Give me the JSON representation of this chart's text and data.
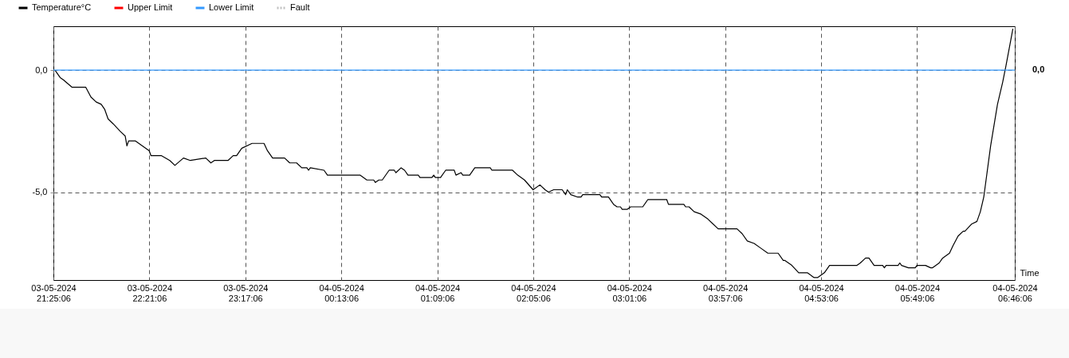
{
  "chart_data": {
    "type": "line",
    "xlabel": "Time",
    "legend": "top left",
    "grid": true,
    "line_style": "solid",
    "marker": "none",
    "xlim": [
      "2024-05-03T21:25:06",
      "2024-05-04T06:46:06"
    ],
    "xticks": [
      {
        "value": "2024-05-03T21:25:06",
        "label": "03-05-2024\n21:25:06"
      },
      {
        "value": "2024-05-03T22:21:06",
        "label": "03-05-2024\n22:21:06"
      },
      {
        "value": "2024-05-03T23:17:06",
        "label": "03-05-2024\n23:17:06"
      },
      {
        "value": "2024-05-04T00:13:06",
        "label": "04-05-2024\n00:13:06"
      },
      {
        "value": "2024-05-04T01:09:06",
        "label": "04-05-2024\n01:09:06"
      },
      {
        "value": "2024-05-04T02:05:06",
        "label": "04-05-2024\n02:05:06"
      },
      {
        "value": "2024-05-04T03:01:06",
        "label": "04-05-2024\n03:01:06"
      },
      {
        "value": "2024-05-04T03:57:06",
        "label": "04-05-2024\n03:57:06"
      },
      {
        "value": "2024-05-04T04:53:06",
        "label": "04-05-2024\n04:53:06"
      },
      {
        "value": "2024-05-04T05:49:06",
        "label": "04-05-2024\n05:49:06"
      },
      {
        "value": "2024-05-04T06:46:06",
        "label": "04-05-2024\n06:46:06"
      }
    ],
    "ylim": [
      -8.6,
      1.8
    ],
    "yticks": [
      {
        "value": 0,
        "label": "0,0"
      },
      {
        "value": -5,
        "label": "-5,0"
      }
    ],
    "annotations": [
      "0,0"
    ],
    "series": [
      {
        "name": "Temperature°C",
        "color": "#000000",
        "x": [
          "2024-05-03T21:26",
          "2024-05-03T21:29",
          "2024-05-03T21:31",
          "2024-05-03T21:36",
          "2024-05-03T21:44",
          "2024-05-03T21:47",
          "2024-05-03T21:50",
          "2024-05-03T21:53",
          "2024-05-03T21:55",
          "2024-05-03T21:57",
          "2024-05-03T22:00",
          "2024-05-03T22:04",
          "2024-05-03T22:07",
          "2024-05-03T22:08",
          "2024-05-03T22:09",
          "2024-05-03T22:13",
          "2024-05-03T22:21",
          "2024-05-03T22:22",
          "2024-05-03T22:28",
          "2024-05-03T22:33",
          "2024-05-03T22:36",
          "2024-05-03T22:41",
          "2024-05-03T22:45",
          "2024-05-03T22:54",
          "2024-05-03T22:57",
          "2024-05-03T22:59",
          "2024-05-03T23:07",
          "2024-05-03T23:10",
          "2024-05-03T23:12",
          "2024-05-03T23:15",
          "2024-05-03T23:21",
          "2024-05-03T23:28",
          "2024-05-03T23:30",
          "2024-05-03T23:33",
          "2024-05-03T23:40",
          "2024-05-03T23:43",
          "2024-05-03T23:47",
          "2024-05-03T23:50",
          "2024-05-03T23:53",
          "2024-05-03T23:54",
          "2024-05-03T23:55",
          "2024-05-04T00:03",
          "2024-05-04T00:05",
          "2024-05-04T00:24",
          "2024-05-04T00:28",
          "2024-05-04T00:32",
          "2024-05-04T00:33",
          "2024-05-04T00:35",
          "2024-05-04T00:37",
          "2024-05-04T00:41",
          "2024-05-04T00:44",
          "2024-05-04T00:45",
          "2024-05-04T00:48",
          "2024-05-04T00:50",
          "2024-05-04T00:52",
          "2024-05-04T00:58",
          "2024-05-04T00:59",
          "2024-05-04T01:06",
          "2024-05-04T01:07",
          "2024-05-04T01:08",
          "2024-05-04T01:11",
          "2024-05-04T01:14",
          "2024-05-04T01:19",
          "2024-05-04T01:20",
          "2024-05-04T01:23",
          "2024-05-04T01:24",
          "2024-05-04T01:28",
          "2024-05-04T01:31",
          "2024-05-04T01:40",
          "2024-05-04T01:41",
          "2024-05-04T01:53",
          "2024-05-04T01:56",
          "2024-05-04T02:00",
          "2024-05-04T02:05",
          "2024-05-04T02:09",
          "2024-05-04T02:12",
          "2024-05-04T02:14",
          "2024-05-04T02:17",
          "2024-05-04T02:22",
          "2024-05-04T02:24",
          "2024-05-04T02:25",
          "2024-05-04T02:27",
          "2024-05-04T02:31",
          "2024-05-04T02:33",
          "2024-05-04T02:34",
          "2024-05-04T02:44",
          "2024-05-04T02:45",
          "2024-05-04T02:49",
          "2024-05-04T02:52",
          "2024-05-04T02:54",
          "2024-05-04T02:56",
          "2024-05-04T02:57",
          "2024-05-04T03:00",
          "2024-05-04T03:02",
          "2024-05-04T03:09",
          "2024-05-04T03:12",
          "2024-05-04T03:23",
          "2024-05-04T03:24",
          "2024-05-04T03:33",
          "2024-05-04T03:34",
          "2024-05-04T03:36",
          "2024-05-04T03:39",
          "2024-05-04T03:43",
          "2024-05-04T03:47",
          "2024-05-04T03:50",
          "2024-05-04T03:53",
          "2024-05-04T04:04",
          "2024-05-04T04:07",
          "2024-05-04T04:10",
          "2024-05-04T04:14",
          "2024-05-04T04:18",
          "2024-05-04T04:22",
          "2024-05-04T04:28",
          "2024-05-04T04:31",
          "2024-05-04T04:32",
          "2024-05-04T04:36",
          "2024-05-04T04:40",
          "2024-05-04T04:45",
          "2024-05-04T04:49",
          "2024-05-04T04:51",
          "2024-05-04T04:55",
          "2024-05-04T04:58",
          "2024-05-04T05:14",
          "2024-05-04T05:16",
          "2024-05-04T05:19",
          "2024-05-04T05:21",
          "2024-05-04T05:24",
          "2024-05-04T05:29",
          "2024-05-04T05:30",
          "2024-05-04T05:31",
          "2024-05-04T05:38",
          "2024-05-04T05:39",
          "2024-05-04T05:40",
          "2024-05-04T05:44",
          "2024-05-04T05:48",
          "2024-05-04T05:49",
          "2024-05-04T05:54",
          "2024-05-04T05:57",
          "2024-05-04T05:58",
          "2024-05-04T06:02",
          "2024-05-04T06:04",
          "2024-05-04T06:08",
          "2024-05-04T06:10",
          "2024-05-04T06:13",
          "2024-05-04T06:16",
          "2024-05-04T06:17",
          "2024-05-04T06:21",
          "2024-05-04T06:24",
          "2024-05-04T06:26",
          "2024-05-04T06:28",
          "2024-05-04T06:32",
          "2024-05-04T06:36",
          "2024-05-04T06:39",
          "2024-05-04T06:41",
          "2024-05-04T06:45"
        ],
        "values": [
          0,
          -0.3,
          -0.4,
          -0.7,
          -0.7,
          -1.1,
          -1.3,
          -1.4,
          -1.6,
          -2.0,
          -2.2,
          -2.5,
          -2.7,
          -3.1,
          -2.9,
          -2.9,
          -3.3,
          -3.5,
          -3.5,
          -3.7,
          -3.9,
          -3.6,
          -3.7,
          -3.6,
          -3.8,
          -3.7,
          -3.7,
          -3.5,
          -3.5,
          -3.2,
          -3.0,
          -3.0,
          -3.3,
          -3.6,
          -3.6,
          -3.8,
          -3.8,
          -4.0,
          -4.0,
          -4.1,
          -4.0,
          -4.1,
          -4.3,
          -4.3,
          -4.5,
          -4.5,
          -4.6,
          -4.5,
          -4.5,
          -4.1,
          -4.1,
          -4.2,
          -4.0,
          -4.1,
          -4.3,
          -4.3,
          -4.4,
          -4.4,
          -4.3,
          -4.4,
          -4.4,
          -4.1,
          -4.1,
          -4.3,
          -4.2,
          -4.3,
          -4.3,
          -4.0,
          -4.0,
          -4.1,
          -4.1,
          -4.3,
          -4.5,
          -4.9,
          -4.7,
          -4.9,
          -5.0,
          -4.9,
          -4.9,
          -5.1,
          -4.9,
          -5.1,
          -5.2,
          -5.2,
          -5.1,
          -5.1,
          -5.2,
          -5.2,
          -5.5,
          -5.6,
          -5.6,
          -5.7,
          -5.7,
          -5.6,
          -5.6,
          -5.3,
          -5.3,
          -5.5,
          -5.5,
          -5.6,
          -5.6,
          -5.8,
          -5.9,
          -6.1,
          -6.3,
          -6.5,
          -6.5,
          -6.7,
          -7.0,
          -7.1,
          -7.3,
          -7.5,
          -7.5,
          -7.8,
          -7.8,
          -8.0,
          -8.3,
          -8.3,
          -8.5,
          -8.5,
          -8.3,
          -8.0,
          -8.0,
          -7.9,
          -7.7,
          -7.7,
          -8.0,
          -8.0,
          -8.1,
          -8.0,
          -8.0,
          -7.9,
          -8.0,
          -8.1,
          -8.1,
          -8.0,
          -8.0,
          -8.1,
          -8.1,
          -7.9,
          -7.7,
          -7.5,
          -7.2,
          -6.8,
          -6.6,
          -6.6,
          -6.3,
          -6.2,
          -5.8,
          -5.2,
          -3.1,
          -1.4,
          -0.5,
          0.2,
          1.7
        ]
      },
      {
        "name": "Upper Limit",
        "color": "#ff0000"
      },
      {
        "name": "Lower Limit",
        "color": "#3399ff",
        "x": [
          "2024-05-03T21:25:06",
          "2024-05-04T06:46:06"
        ],
        "values": [
          0,
          0
        ]
      },
      {
        "name": "Fault",
        "color": "#c0c0c0",
        "line_style": "dotted"
      }
    ]
  }
}
